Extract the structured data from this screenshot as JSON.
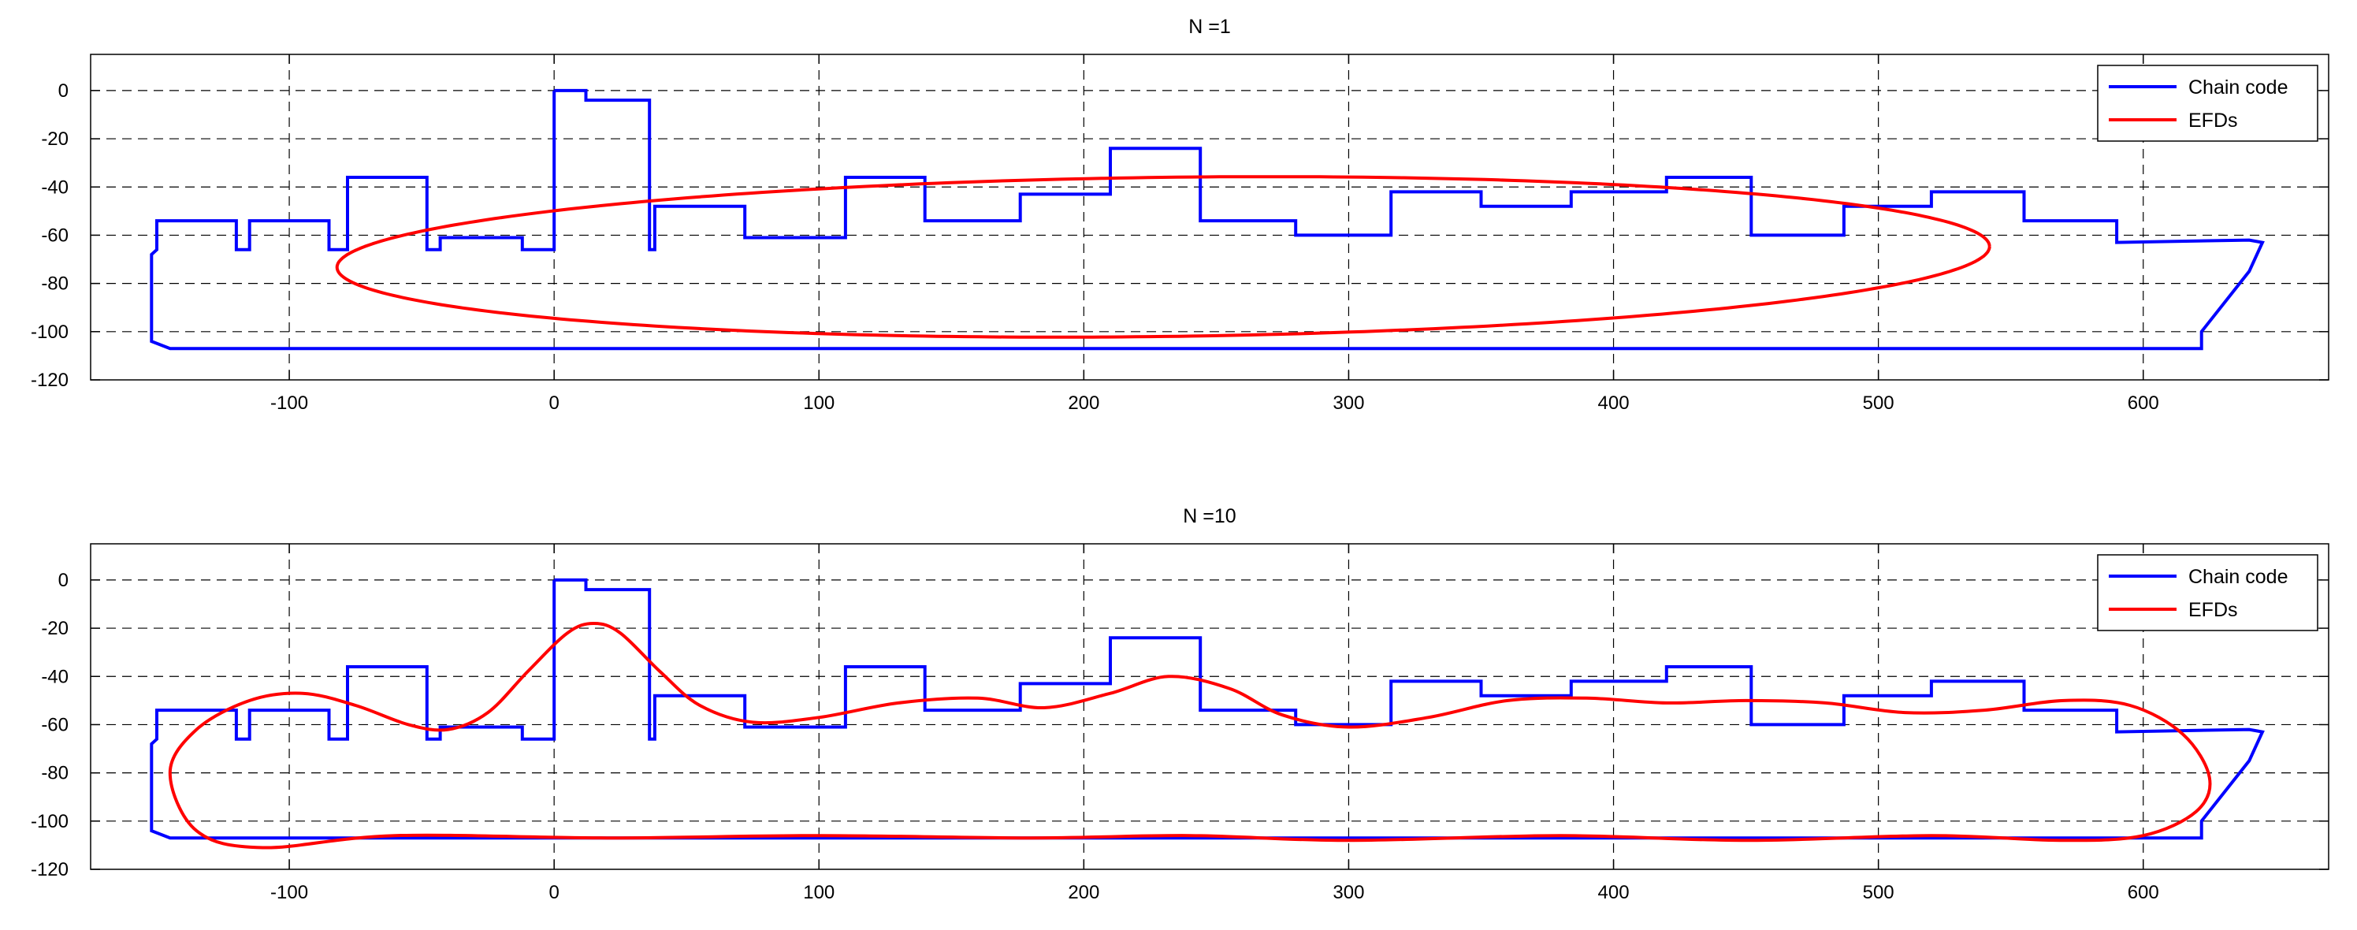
{
  "chart_data": [
    {
      "type": "line",
      "title": "N =1",
      "xlabel": "",
      "ylabel": "",
      "xlim": [
        -175,
        670
      ],
      "ylim": [
        -120,
        15
      ],
      "xticks": [
        -100,
        0,
        100,
        200,
        300,
        400,
        500,
        600
      ],
      "yticks": [
        0,
        -20,
        -40,
        -60,
        -80,
        -100,
        -120
      ],
      "grid": true,
      "legend_position": "top-right",
      "series": [
        {
          "name": "Chain code",
          "color": "#0000ff",
          "x": [
            0,
            12,
            12,
            36,
            36,
            38,
            38,
            72,
            72,
            110,
            110,
            140,
            140,
            176,
            176,
            210,
            210,
            244,
            244,
            280,
            280,
            316,
            316,
            350,
            350,
            384,
            384,
            420,
            420,
            452,
            452,
            487,
            487,
            520,
            520,
            555,
            555,
            590,
            590,
            640,
            645,
            640,
            622,
            622,
            10,
            -100,
            -145,
            -152,
            -152,
            -150,
            -150,
            -120,
            -120,
            -115,
            -115,
            -85,
            -85,
            -78,
            -78,
            -48,
            -48,
            -43,
            -43,
            -12,
            -12,
            0,
            0
          ],
          "y": [
            0,
            0,
            -4,
            -4,
            -66,
            -66,
            -48,
            -48,
            -61,
            -61,
            -36,
            -36,
            -54,
            -54,
            -43,
            -43,
            -24,
            -24,
            -54,
            -54,
            -60,
            -60,
            -42,
            -42,
            -48,
            -48,
            -42,
            -42,
            -36,
            -36,
            -60,
            -60,
            -48,
            -48,
            -42,
            -42,
            -54,
            -54,
            -63,
            -62,
            -63,
            -75,
            -100,
            -107,
            -107,
            -107,
            -107,
            -104,
            -68,
            -66,
            -54,
            -54,
            -66,
            -66,
            -54,
            -54,
            -66,
            -66,
            -36,
            -36,
            -66,
            -66,
            -61,
            -61,
            -66,
            -66,
            0
          ]
        },
        {
          "name": "EFDs",
          "color": "#ff0000",
          "shape": "ellipse",
          "center": [
            230,
            -69
          ],
          "semi_axes": [
            312,
            33
          ],
          "tilt_deg": 0.8
        }
      ]
    },
    {
      "type": "line",
      "title": "N =10",
      "xlabel": "",
      "ylabel": "",
      "xlim": [
        -175,
        670
      ],
      "ylim": [
        -120,
        15
      ],
      "xticks": [
        -100,
        0,
        100,
        200,
        300,
        400,
        500,
        600
      ],
      "yticks": [
        0,
        -20,
        -40,
        -60,
        -80,
        -100,
        -120
      ],
      "grid": true,
      "legend_position": "top-right",
      "series": [
        {
          "name": "Chain code",
          "color": "#0000ff",
          "x": [
            0,
            12,
            12,
            36,
            36,
            38,
            38,
            72,
            72,
            110,
            110,
            140,
            140,
            176,
            176,
            210,
            210,
            244,
            244,
            280,
            280,
            316,
            316,
            350,
            350,
            384,
            384,
            420,
            420,
            452,
            452,
            487,
            487,
            520,
            520,
            555,
            555,
            590,
            590,
            640,
            645,
            640,
            622,
            622,
            10,
            -100,
            -145,
            -152,
            -152,
            -150,
            -150,
            -120,
            -120,
            -115,
            -115,
            -85,
            -85,
            -78,
            -78,
            -48,
            -48,
            -43,
            -43,
            -12,
            -12,
            0,
            0
          ],
          "y": [
            0,
            0,
            -4,
            -4,
            -66,
            -66,
            -48,
            -48,
            -61,
            -61,
            -36,
            -36,
            -54,
            -54,
            -43,
            -43,
            -24,
            -24,
            -54,
            -54,
            -60,
            -60,
            -42,
            -42,
            -48,
            -48,
            -42,
            -42,
            -36,
            -36,
            -60,
            -60,
            -48,
            -48,
            -42,
            -42,
            -54,
            -54,
            -63,
            -62,
            -63,
            -75,
            -100,
            -107,
            -107,
            -107,
            -107,
            -104,
            -68,
            -66,
            -54,
            -54,
            -66,
            -66,
            -54,
            -54,
            -66,
            -66,
            -36,
            -36,
            -66,
            -66,
            -61,
            -61,
            -66,
            -66,
            0
          ]
        },
        {
          "name": "EFDs",
          "color": "#ff0000",
          "x": [
            -145,
            -135,
            -115,
            -95,
            -75,
            -55,
            -40,
            -25,
            -10,
            5,
            15,
            25,
            40,
            55,
            75,
            100,
            130,
            160,
            185,
            210,
            232,
            255,
            275,
            300,
            330,
            360,
            390,
            420,
            450,
            480,
            510,
            540,
            570,
            595,
            615,
            625,
            620,
            600,
            570,
            520,
            450,
            380,
            300,
            240,
            180,
            100,
            20,
            -60,
            -110,
            -135,
            -145
          ],
          "y": [
            -80,
            -62,
            -50,
            -47,
            -52,
            -60,
            -62,
            -55,
            -38,
            -22,
            -18,
            -22,
            -38,
            -52,
            -59,
            -57,
            -51,
            -49,
            -53,
            -47,
            -40,
            -45,
            -56,
            -61,
            -57,
            -50,
            -49,
            -51,
            -50,
            -51,
            -55,
            -54,
            -50,
            -52,
            -64,
            -82,
            -96,
            -106,
            -108,
            -106,
            -108,
            -106,
            -108,
            -106,
            -107,
            -106,
            -107,
            -106,
            -111,
            -104,
            -80
          ]
        }
      ]
    }
  ]
}
